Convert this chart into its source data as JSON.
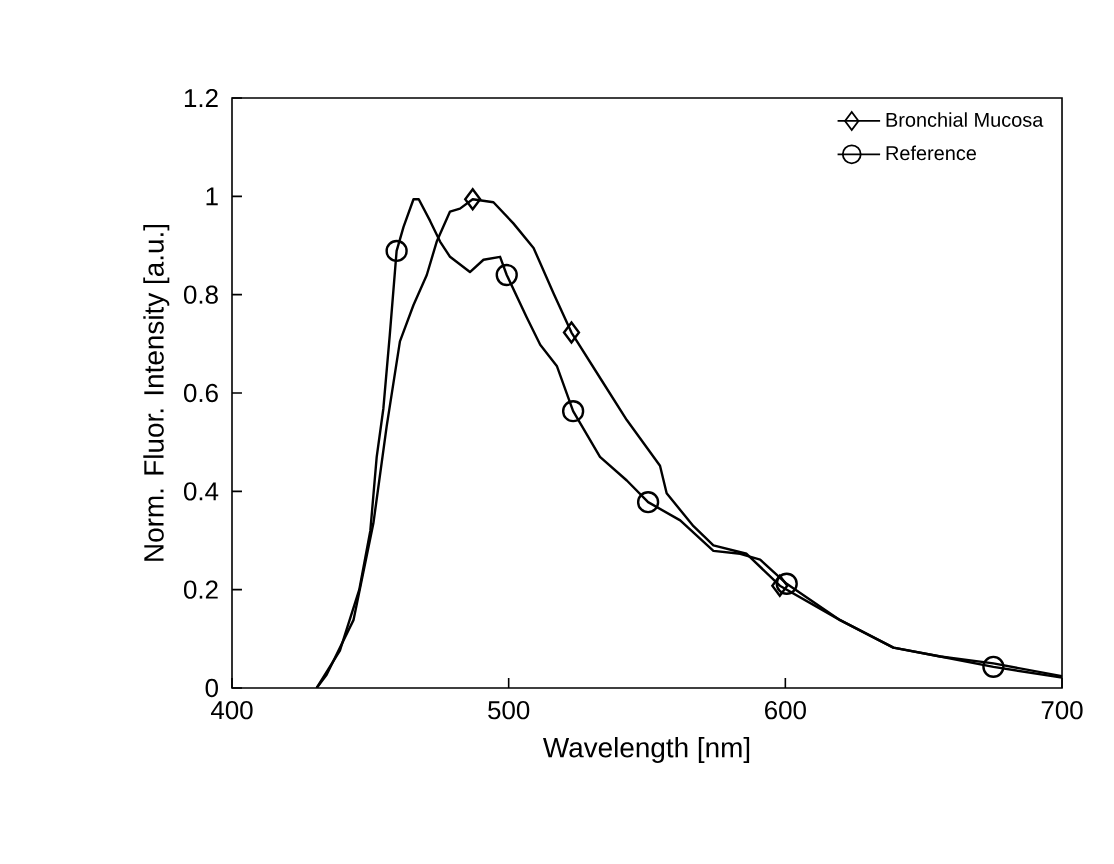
{
  "chart_data": {
    "type": "line",
    "xlabel": "Wavelength [nm]",
    "ylabel": "Norm. Fluor. Intensity [a.u.]",
    "xlim": [
      400,
      700
    ],
    "xticks": [
      400,
      500,
      600,
      700
    ],
    "ylim": [
      0,
      1.2
    ],
    "yticks": [
      0,
      0.2,
      0.4,
      0.6,
      0.8,
      1,
      1.2
    ],
    "grid": false,
    "legend": "top right",
    "line_style": "solid",
    "series": [
      {
        "name": "Bronchial Mucosa",
        "color": "#000000",
        "x": [
          430.6,
          434.2,
          443.9,
          451.1,
          455.9,
          460.7,
          465.6,
          470.4,
          474,
          478.8,
          482.4,
          487,
          494.5,
          501.7,
          509,
          516.2,
          522.7,
          533,
          542.7,
          554.7,
          557.1,
          566.8,
          574,
          586,
          598,
          619.8,
          639,
          656,
          675.2,
          700
        ],
        "values": [
          0,
          0.027,
          0.138,
          0.335,
          0.532,
          0.705,
          0.779,
          0.84,
          0.908,
          0.969,
          0.975,
          0.994,
          0.988,
          0.945,
          0.895,
          0.803,
          0.723,
          0.631,
          0.545,
          0.452,
          0.396,
          0.329,
          0.29,
          0.273,
          0.208,
          0.138,
          0.082,
          0.064,
          0.05,
          0.024
        ]
      },
      {
        "name": "Reference",
        "color": "#000000",
        "x": [
          430.6,
          439,
          446,
          450,
          452.3,
          454.7,
          457,
          459.5,
          462,
          465.6,
          467.5,
          471.6,
          475.2,
          478.8,
          486,
          490.9,
          496.9,
          499.3,
          506.5,
          511.4,
          517.4,
          523.3,
          533,
          542.7,
          550.4,
          562,
          574,
          583.7,
          590.9,
          600.5,
          619.8,
          639.1,
          656,
          675.2,
          700
        ],
        "values": [
          0,
          0.076,
          0.2,
          0.32,
          0.47,
          0.568,
          0.716,
          0.889,
          0.938,
          0.994,
          0.994,
          0.95,
          0.908,
          0.877,
          0.846,
          0.871,
          0.877,
          0.84,
          0.754,
          0.698,
          0.655,
          0.563,
          0.47,
          0.422,
          0.378,
          0.341,
          0.279,
          0.273,
          0.261,
          0.212,
          0.138,
          0.082,
          0.064,
          0.043,
          0.021
        ]
      },
      {
        "type": "scatter",
        "color": "#000000",
        "marker": "diamond",
        "x": [
          487,
          522.7,
          598
        ],
        "values": [
          0.994,
          0.723,
          0.208
        ]
      },
      {
        "type": "scatter",
        "color": "#000000",
        "marker": "circle",
        "x": [
          459.5,
          499.3,
          523.3,
          550.4,
          600.5,
          675.2
        ],
        "values": [
          0.889,
          0.84,
          0.563,
          0.378,
          0.212,
          0.043
        ]
      }
    ]
  }
}
